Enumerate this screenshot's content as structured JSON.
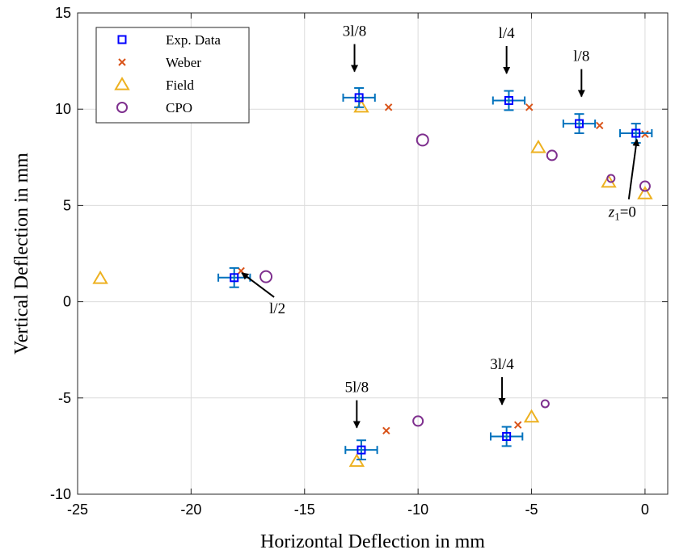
{
  "chart_data": {
    "type": "scatter",
    "xlabel": "Horizontal Deflection in mm",
    "ylabel": "Vertical Deflection in mm",
    "xlim": [
      -25,
      1
    ],
    "ylim": [
      -10,
      15
    ],
    "xticks": [
      -25,
      -20,
      -15,
      -10,
      -5,
      0
    ],
    "yticks": [
      -10,
      -5,
      0,
      5,
      10,
      15
    ],
    "grid": true,
    "legend_position": "top-left",
    "series": [
      {
        "name": "Exp. Data",
        "marker": "square",
        "color": "#0000FF",
        "errorbar_color": "#0072BD",
        "error_x": 0.7,
        "error_y": 0.5,
        "points": [
          {
            "x": -0.4,
            "y": 8.75
          },
          {
            "x": -2.9,
            "y": 9.25
          },
          {
            "x": -6.0,
            "y": 10.45
          },
          {
            "x": -12.6,
            "y": 10.6
          },
          {
            "x": -18.1,
            "y": 1.25
          },
          {
            "x": -12.5,
            "y": -7.7
          },
          {
            "x": -6.1,
            "y": -7.0
          }
        ]
      },
      {
        "name": "Weber",
        "marker": "x",
        "color": "#D95319",
        "points": [
          {
            "x": 0.0,
            "y": 8.7
          },
          {
            "x": -2.0,
            "y": 9.15
          },
          {
            "x": -5.1,
            "y": 10.1
          },
          {
            "x": -11.3,
            "y": 10.1
          },
          {
            "x": -17.8,
            "y": 1.6
          },
          {
            "x": -11.4,
            "y": -6.7
          },
          {
            "x": -5.6,
            "y": -6.4
          }
        ]
      },
      {
        "name": "Field",
        "marker": "triangle",
        "color": "#EDB120",
        "points": [
          {
            "x": -24.0,
            "y": 1.2
          },
          {
            "x": -12.5,
            "y": 10.1
          },
          {
            "x": -4.7,
            "y": 8.0
          },
          {
            "x": -1.6,
            "y": 6.2
          },
          {
            "x": 0.0,
            "y": 5.6
          },
          {
            "x": -12.7,
            "y": -8.3
          },
          {
            "x": -5.0,
            "y": -6.0
          }
        ]
      },
      {
        "name": "CPO",
        "marker": "circle",
        "color": "#7E2F8E",
        "points": [
          {
            "x": -16.7,
            "y": 1.3,
            "size": "large"
          },
          {
            "x": -9.8,
            "y": 8.4,
            "size": "large"
          },
          {
            "x": -4.1,
            "y": 7.6,
            "size": "medium"
          },
          {
            "x": -1.5,
            "y": 6.4,
            "size": "small"
          },
          {
            "x": 0.0,
            "y": 6.0,
            "size": "medium"
          },
          {
            "x": -10.0,
            "y": -6.2,
            "size": "medium"
          },
          {
            "x": -4.4,
            "y": -5.3,
            "size": "small"
          }
        ]
      }
    ],
    "annotations": [
      {
        "text": "3l/8",
        "x": -12.8,
        "y": 13.8,
        "arrow": "down"
      },
      {
        "text": "l/4",
        "x": -6.1,
        "y": 13.7,
        "arrow": "down"
      },
      {
        "text": "l/8",
        "x": -2.8,
        "y": 12.5,
        "arrow": "down"
      },
      {
        "text": "z",
        "subscript": "1",
        "suffix": "=0",
        "x": -1.0,
        "y": 4.4,
        "arrow": "up"
      },
      {
        "text": "l/2",
        "x": -16.2,
        "y": -0.6,
        "arrow": "up-left"
      },
      {
        "text": "5l/8",
        "x": -12.7,
        "y": -4.7,
        "arrow": "down"
      },
      {
        "text": "3l/4",
        "x": -6.3,
        "y": -3.5,
        "arrow": "down"
      }
    ]
  }
}
